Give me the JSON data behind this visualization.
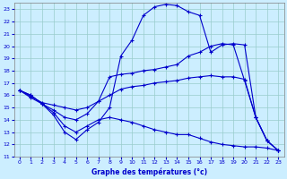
{
  "xlabel": "Graphe des températures (°c)",
  "bg_color": "#cceeff",
  "grid_color": "#99cccc",
  "line_color": "#0000cc",
  "xlim": [
    -0.5,
    23.5
  ],
  "ylim": [
    11,
    23.5
  ],
  "xticks": [
    0,
    1,
    2,
    3,
    4,
    5,
    6,
    7,
    8,
    9,
    10,
    11,
    12,
    13,
    14,
    15,
    16,
    17,
    18,
    19,
    20,
    21,
    22,
    23
  ],
  "yticks": [
    11,
    12,
    13,
    14,
    15,
    16,
    17,
    18,
    19,
    20,
    21,
    22,
    23
  ],
  "line1_x": [
    0,
    1,
    2,
    3,
    4,
    5,
    6,
    7,
    8,
    9,
    10,
    11,
    12,
    13,
    14,
    15,
    16,
    17,
    18,
    19,
    20,
    21,
    22,
    23
  ],
  "line1_y": [
    16.4,
    16.0,
    15.3,
    14.4,
    13.0,
    12.4,
    13.2,
    13.8,
    15.0,
    19.2,
    20.5,
    22.5,
    23.2,
    23.4,
    23.3,
    22.8,
    22.5,
    19.5,
    20.1,
    20.2,
    20.1,
    14.2,
    12.3,
    11.5
  ],
  "line2_x": [
    0,
    1,
    2,
    3,
    4,
    5,
    6,
    7,
    8,
    9,
    10,
    11,
    12,
    13,
    14,
    15,
    16,
    17,
    18,
    19,
    20,
    21,
    22,
    23
  ],
  "line2_y": [
    16.4,
    16.0,
    15.3,
    14.8,
    14.2,
    14.0,
    14.5,
    15.5,
    17.5,
    17.7,
    17.8,
    18.0,
    18.1,
    18.3,
    18.5,
    19.2,
    19.5,
    20.0,
    20.2,
    20.1,
    17.2,
    14.2,
    12.3,
    11.5
  ],
  "line3_x": [
    0,
    1,
    2,
    3,
    4,
    5,
    6,
    7,
    8,
    9,
    10,
    11,
    12,
    13,
    14,
    15,
    16,
    17,
    18,
    19,
    20,
    21,
    22,
    23
  ],
  "line3_y": [
    16.4,
    15.9,
    15.4,
    15.2,
    15.0,
    14.8,
    15.0,
    15.5,
    16.0,
    16.5,
    16.7,
    16.8,
    17.0,
    17.1,
    17.2,
    17.4,
    17.5,
    17.6,
    17.5,
    17.5,
    17.3,
    14.2,
    12.3,
    11.5
  ],
  "line4_x": [
    0,
    1,
    2,
    3,
    4,
    5,
    6,
    7,
    8,
    9,
    10,
    11,
    12,
    13,
    14,
    15,
    16,
    17,
    18,
    19,
    20,
    21,
    22,
    23
  ],
  "line4_y": [
    16.4,
    15.8,
    15.3,
    14.6,
    13.5,
    13.0,
    13.5,
    14.0,
    14.2,
    14.0,
    13.8,
    13.5,
    13.2,
    13.0,
    12.8,
    12.8,
    12.5,
    12.2,
    12.0,
    11.9,
    11.8,
    11.8,
    11.7,
    11.5
  ]
}
